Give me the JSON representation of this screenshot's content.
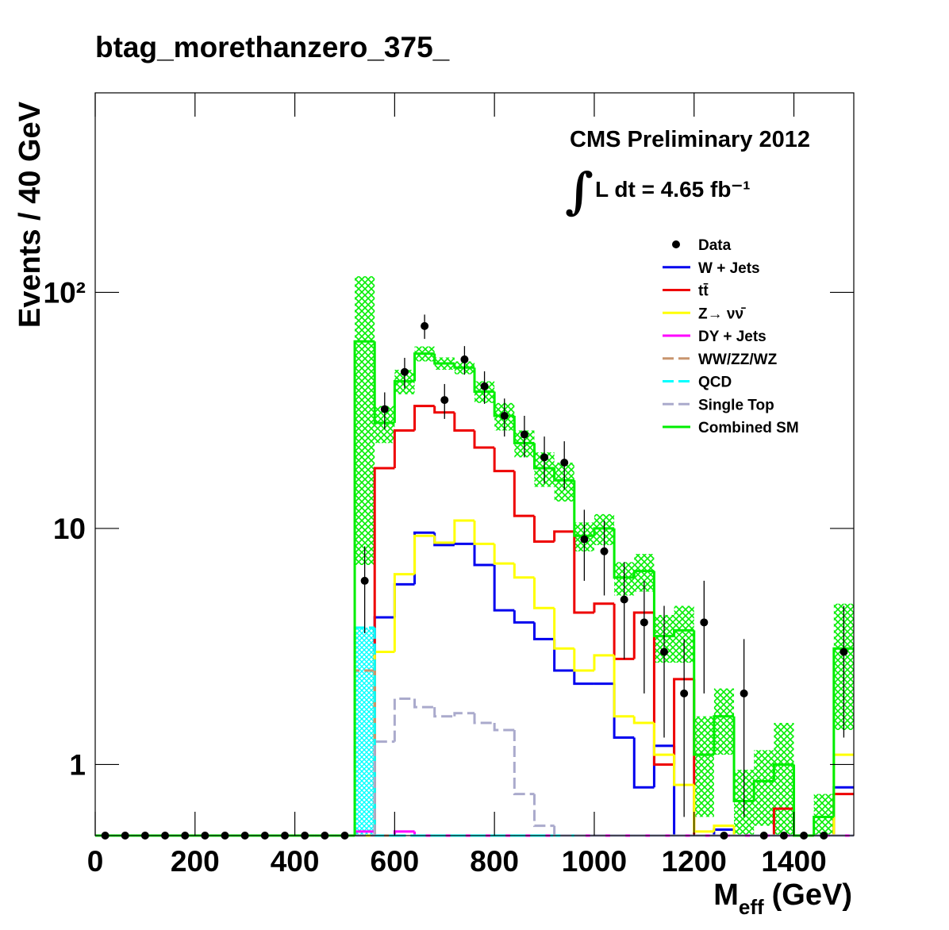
{
  "chart_data": {
    "type": "histogram",
    "title": "btag_morethanzero_375_",
    "xlabel": {
      "symbol": "M",
      "subscript": "eff",
      "unit": "(GeV)"
    },
    "ylabel": "Events / 40 GeV",
    "annotations": [
      "CMS Preliminary 2012",
      "∫",
      "L dt = 4.65 fb⁻¹"
    ],
    "bins": [
      0,
      40,
      80,
      120,
      160,
      200,
      240,
      280,
      320,
      360,
      400,
      440,
      480,
      520,
      560,
      600,
      640,
      680,
      720,
      760,
      800,
      840,
      880,
      920,
      960,
      1000,
      1040,
      1080,
      1120,
      1160,
      1200,
      1240,
      1280,
      1320,
      1360,
      1400,
      1440,
      1480,
      1520
    ],
    "xlim": [
      0,
      1520
    ],
    "xticks": [
      0,
      200,
      400,
      600,
      800,
      1000,
      1200,
      1400
    ],
    "ylim": [
      0.5,
      700
    ],
    "yticks": [
      1,
      10,
      {
        "value": 100,
        "label": "10²"
      }
    ],
    "log_y": true,
    "grid": false,
    "legend": "upper right",
    "series": [
      {
        "name": "Data",
        "color": "#000000",
        "style": "points",
        "values": [
          0,
          0,
          0,
          0,
          0,
          0,
          0,
          0,
          0,
          0,
          0,
          0,
          0,
          6,
          32,
          46,
          72,
          35,
          52,
          40,
          30,
          25,
          20,
          19,
          9,
          8,
          5,
          4,
          3,
          2,
          4,
          0,
          2,
          0,
          0,
          0,
          0,
          3
        ],
        "errors": [
          0,
          0,
          0,
          0,
          0,
          0,
          0,
          0,
          0,
          0,
          0,
          0,
          0,
          2.4,
          5.7,
          6.8,
          8.5,
          5.9,
          7.2,
          6.3,
          5.5,
          5,
          4.5,
          4.4,
          3,
          2.8,
          2.2,
          2,
          1.7,
          1.4,
          2,
          0,
          1.4,
          0,
          0,
          0,
          0,
          1.7
        ]
      },
      {
        "name": "W + Jets",
        "color": "#0000ee",
        "style": "step",
        "dash": false,
        "values": [
          0,
          0,
          0,
          0,
          0,
          0,
          0,
          0,
          0,
          0,
          0,
          0,
          0,
          0,
          4.2,
          5.8,
          9.6,
          8.5,
          8.6,
          7.0,
          4.5,
          4.0,
          3.4,
          2.5,
          2.2,
          2.2,
          1.3,
          0.8,
          1.2,
          0,
          0,
          0.53,
          0,
          0,
          0,
          0,
          0,
          0.8
        ]
      },
      {
        "name": "tt̄",
        "color": "#ee0000",
        "style": "step",
        "dash": false,
        "values": [
          0,
          0,
          0,
          0,
          0,
          0,
          0,
          0,
          0,
          0,
          0,
          0,
          0,
          0,
          18,
          26,
          33,
          31,
          26,
          22,
          17.5,
          11.3,
          8.8,
          9.7,
          4.4,
          4.8,
          2.8,
          4.4,
          1.0,
          2.3,
          0,
          0,
          0,
          0,
          0.65,
          0,
          0,
          0.75
        ]
      },
      {
        "name": "Z→ νν̄",
        "color": "#ffff00",
        "style": "step",
        "dash": false,
        "values": [
          0,
          0,
          0,
          0,
          0,
          0,
          0,
          0,
          0,
          0,
          0,
          0,
          0,
          0,
          3.0,
          6.4,
          9.3,
          8.7,
          10.8,
          8.6,
          7.1,
          6.2,
          4.6,
          3.1,
          2.5,
          2.9,
          1.6,
          1.5,
          1.1,
          0.82,
          0.52,
          0.55,
          0,
          0,
          0,
          0,
          0,
          1.1
        ]
      },
      {
        "name": "DY + Jets",
        "color": "#ff00ff",
        "style": "step",
        "dash": false,
        "values": [
          0,
          0,
          0,
          0,
          0,
          0,
          0,
          0,
          0,
          0,
          0,
          0,
          0,
          0.52,
          0,
          0.52,
          0,
          0,
          0,
          0,
          0,
          0,
          0,
          0,
          0,
          0,
          0,
          0,
          0,
          0,
          0,
          0,
          0,
          0,
          0,
          0,
          0,
          0
        ]
      },
      {
        "name": "WW/ZZ/WZ",
        "color": "#c8956e",
        "style": "step",
        "dash": true,
        "values": [
          0,
          0,
          0,
          0,
          0,
          0,
          0,
          0,
          0,
          0,
          0,
          0,
          0,
          2.5,
          0,
          0,
          0,
          0,
          0,
          0,
          0,
          0,
          0,
          0,
          0,
          0,
          0,
          0,
          0,
          0,
          0,
          0,
          0,
          0,
          0,
          0,
          0,
          0
        ]
      },
      {
        "name": "QCD",
        "color": "#00ffff",
        "style": "step",
        "dash": true,
        "hatch": true,
        "values": [
          0,
          0,
          0,
          0,
          0,
          0,
          0,
          0,
          0,
          0,
          0,
          0,
          0,
          3.8,
          0,
          0,
          0,
          0,
          0,
          0,
          0,
          0,
          0,
          0,
          0,
          0,
          0,
          0,
          0,
          0,
          0,
          0,
          0,
          0,
          0,
          0,
          0,
          0
        ]
      },
      {
        "name": "Single Top",
        "color": "#aaaacc",
        "style": "step",
        "dash": true,
        "values": [
          0,
          0,
          0,
          0,
          0,
          0,
          0,
          0,
          0,
          0,
          0,
          0,
          0,
          0,
          1.25,
          1.9,
          1.75,
          1.6,
          1.65,
          1.5,
          1.4,
          0.75,
          0.55,
          0,
          0,
          0,
          0,
          0,
          0,
          0,
          0,
          0,
          0,
          0,
          0,
          0,
          0,
          0
        ]
      },
      {
        "name": "Combined SM",
        "color": "#00ee00",
        "style": "step",
        "dash": false,
        "band": true,
        "values": [
          0,
          0,
          0,
          0,
          0,
          0,
          0,
          0,
          0,
          0,
          0,
          0,
          0,
          62,
          28,
          42,
          55,
          50,
          48,
          38,
          30,
          23,
          18,
          16,
          9.3,
          10,
          6.2,
          6.6,
          3.5,
          3.7,
          1.1,
          1.6,
          0.7,
          0.85,
          1.0,
          0,
          0.6,
          3.1
        ],
        "errors": [
          0,
          0,
          0,
          0,
          0,
          0,
          0,
          0,
          0,
          0,
          0,
          0,
          0,
          55,
          5,
          5,
          4,
          3,
          3,
          4,
          4,
          3,
          3,
          3,
          1.3,
          1.5,
          1,
          1.2,
          0.8,
          1,
          0.5,
          0.5,
          0.25,
          0.3,
          0.5,
          0,
          0.15,
          1.7
        ]
      }
    ]
  }
}
